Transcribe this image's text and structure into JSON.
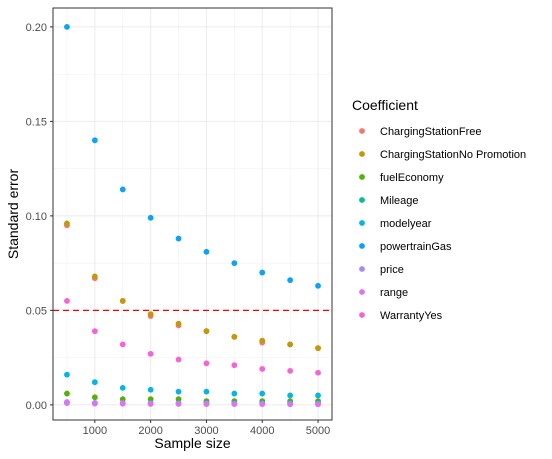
{
  "chart_data": {
    "type": "scatter",
    "xlabel": "Sample size",
    "ylabel": "Standard error",
    "xlim": [
      250,
      5250
    ],
    "ylim": [
      -0.008,
      0.21
    ],
    "x_ticks": [
      1000,
      2000,
      3000,
      4000,
      5000
    ],
    "x_tick_labels": [
      "1000",
      "2000",
      "3000",
      "4000",
      "5000"
    ],
    "y_ticks": [
      0.0,
      0.05,
      0.1,
      0.15,
      0.2
    ],
    "y_tick_labels": [
      "0.00",
      "0.05",
      "0.10",
      "0.15",
      "0.20"
    ],
    "grid": true,
    "reference_line": {
      "y": 0.05,
      "color": "#ff0000",
      "style": "dashed"
    },
    "legend": {
      "title": "Coefficient",
      "position": "right"
    },
    "x": [
      500,
      1000,
      1500,
      2000,
      2500,
      3000,
      3500,
      4000,
      4500,
      5000
    ],
    "series": [
      {
        "name": "ChargingStationFree",
        "color": "#F8766D",
        "values": [
          0.095,
          0.067,
          0.055,
          0.047,
          0.042,
          0.039,
          0.036,
          0.033,
          0.032,
          0.03
        ]
      },
      {
        "name": "ChargingStationNo Promotion",
        "color": "#C49A00",
        "values": [
          0.096,
          0.068,
          0.055,
          0.048,
          0.043,
          0.039,
          0.036,
          0.034,
          0.032,
          0.03
        ]
      },
      {
        "name": "fuelEconomy",
        "color": "#53B400",
        "values": [
          0.006,
          0.004,
          0.003,
          0.003,
          0.003,
          0.002,
          0.002,
          0.002,
          0.002,
          0.002
        ]
      },
      {
        "name": "Mileage",
        "color": "#00C094",
        "values": [
          0.001,
          0.001,
          0.001,
          0.001,
          0.001,
          0.001,
          0.001,
          0.001,
          0.001,
          0.001
        ]
      },
      {
        "name": "modelyear",
        "color": "#00B6EB",
        "values": [
          0.016,
          0.012,
          0.009,
          0.008,
          0.007,
          0.007,
          0.006,
          0.006,
          0.005,
          0.005
        ]
      },
      {
        "name": "powertrainGas",
        "color": "#06A4FF",
        "values": [
          0.2,
          0.14,
          0.114,
          0.099,
          0.088,
          0.081,
          0.075,
          0.07,
          0.066,
          0.063
        ]
      },
      {
        "name": "price",
        "color": "#A58AFF",
        "values": [
          0.0015,
          0.001,
          0.001,
          0.0008,
          0.0007,
          0.0007,
          0.0006,
          0.0006,
          0.0005,
          0.0005
        ]
      },
      {
        "name": "range",
        "color": "#DF70F8",
        "values": [
          0.001,
          0.0007,
          0.0006,
          0.0005,
          0.0005,
          0.0004,
          0.0004,
          0.0004,
          0.0003,
          0.0003
        ]
      },
      {
        "name": "WarrantyYes",
        "color": "#FB61D7",
        "values": [
          0.055,
          0.039,
          0.032,
          0.027,
          0.024,
          0.022,
          0.021,
          0.019,
          0.018,
          0.017
        ]
      }
    ]
  }
}
